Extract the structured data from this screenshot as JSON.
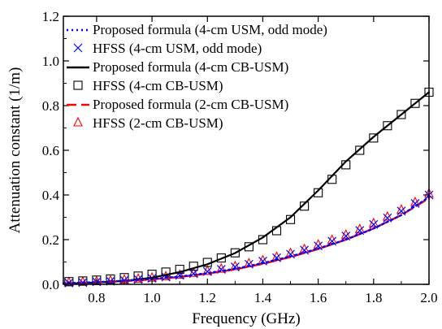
{
  "chart_data": {
    "type": "line",
    "title": "",
    "xlabel": "Frequency (GHz)",
    "ylabel": "Attenuation constant (1/m)",
    "xlim": [
      0.68,
      2.0
    ],
    "ylim": [
      0.0,
      1.2
    ],
    "xticks": [
      0.8,
      1.0,
      1.2,
      1.4,
      1.6,
      1.8,
      2.0
    ],
    "xtick_labels": [
      "0.8",
      "1.0",
      "1.2",
      "1.4",
      "1.6",
      "1.8",
      "2.0"
    ],
    "yticks": [
      0.0,
      0.2,
      0.4,
      0.6,
      0.8,
      1.0,
      1.2
    ],
    "ytick_labels": [
      "0.0",
      "0.2",
      "0.4",
      "0.6",
      "0.8",
      "1.0",
      "1.2"
    ],
    "grid": false,
    "legend_position": "top-left",
    "series": [
      {
        "name": "Proposed formula (4-cm USM, odd mode)",
        "kind": "line",
        "style": "dotted",
        "color": "#0000ff",
        "x": [
          0.68,
          0.8,
          0.9,
          1.0,
          1.1,
          1.2,
          1.3,
          1.4,
          1.5,
          1.6,
          1.7,
          1.8,
          1.9,
          2.0
        ],
        "y": [
          0.005,
          0.01,
          0.016,
          0.024,
          0.035,
          0.05,
          0.07,
          0.095,
          0.125,
          0.16,
          0.2,
          0.25,
          0.31,
          0.39
        ]
      },
      {
        "name": "HFSS (4-cm USM, odd mode)",
        "kind": "marker",
        "marker": "x",
        "color": "#0000ff",
        "x": [
          0.7,
          0.75,
          0.8,
          0.85,
          0.9,
          0.95,
          1.0,
          1.05,
          1.1,
          1.15,
          1.2,
          1.25,
          1.3,
          1.35,
          1.4,
          1.45,
          1.5,
          1.55,
          1.6,
          1.65,
          1.7,
          1.75,
          1.8,
          1.85,
          1.9,
          1.95,
          2.0
        ],
        "y": [
          0.006,
          0.008,
          0.011,
          0.014,
          0.018,
          0.022,
          0.027,
          0.033,
          0.04,
          0.048,
          0.057,
          0.067,
          0.078,
          0.09,
          0.104,
          0.119,
          0.135,
          0.153,
          0.172,
          0.193,
          0.216,
          0.241,
          0.268,
          0.297,
          0.328,
          0.362,
          0.4
        ]
      },
      {
        "name": "Proposed formula (4-cm CB-USM)",
        "kind": "line",
        "style": "solid",
        "color": "#000000",
        "x": [
          0.68,
          0.8,
          0.9,
          1.0,
          1.1,
          1.2,
          1.3,
          1.4,
          1.5,
          1.6,
          1.7,
          1.8,
          1.9,
          2.0
        ],
        "y": [
          0.002,
          0.008,
          0.015,
          0.03,
          0.055,
          0.09,
          0.14,
          0.21,
          0.3,
          0.42,
          0.55,
          0.66,
          0.76,
          0.86
        ]
      },
      {
        "name": "HFSS (4-cm CB-USM)",
        "kind": "marker",
        "marker": "square",
        "color": "#000000",
        "x": [
          0.7,
          0.75,
          0.8,
          0.85,
          0.9,
          0.95,
          1.0,
          1.05,
          1.1,
          1.15,
          1.2,
          1.25,
          1.3,
          1.35,
          1.4,
          1.45,
          1.5,
          1.55,
          1.6,
          1.65,
          1.7,
          1.75,
          1.8,
          1.85,
          1.9,
          1.95,
          2.0
        ],
        "y": [
          0.012,
          0.015,
          0.019,
          0.024,
          0.03,
          0.037,
          0.045,
          0.055,
          0.067,
          0.081,
          0.098,
          0.118,
          0.141,
          0.168,
          0.2,
          0.24,
          0.29,
          0.35,
          0.41,
          0.47,
          0.535,
          0.6,
          0.655,
          0.71,
          0.76,
          0.81,
          0.86
        ]
      },
      {
        "name": "Proposed formula (2-cm CB-USM)",
        "kind": "line",
        "style": "dashed",
        "color": "#ff0000",
        "x": [
          0.68,
          0.8,
          0.9,
          1.0,
          1.1,
          1.2,
          1.3,
          1.4,
          1.5,
          1.6,
          1.7,
          1.8,
          1.9,
          2.0
        ],
        "y": [
          0.004,
          0.009,
          0.014,
          0.022,
          0.033,
          0.048,
          0.067,
          0.092,
          0.122,
          0.158,
          0.2,
          0.25,
          0.31,
          0.385
        ]
      },
      {
        "name": "HFSS (2-cm CB-USM)",
        "kind": "marker",
        "marker": "triangle",
        "color": "#ff0000",
        "x": [
          0.7,
          0.75,
          0.8,
          0.85,
          0.9,
          0.95,
          1.0,
          1.05,
          1.1,
          1.15,
          1.2,
          1.25,
          1.3,
          1.35,
          1.4,
          1.45,
          1.5,
          1.55,
          1.6,
          1.65,
          1.7,
          1.75,
          1.8,
          1.85,
          1.9,
          1.95,
          2.0
        ],
        "y": [
          0.008,
          0.01,
          0.013,
          0.016,
          0.02,
          0.024,
          0.029,
          0.035,
          0.042,
          0.05,
          0.059,
          0.069,
          0.08,
          0.093,
          0.107,
          0.122,
          0.139,
          0.157,
          0.177,
          0.198,
          0.221,
          0.246,
          0.273,
          0.302,
          0.333,
          0.367,
          0.405
        ]
      }
    ]
  }
}
